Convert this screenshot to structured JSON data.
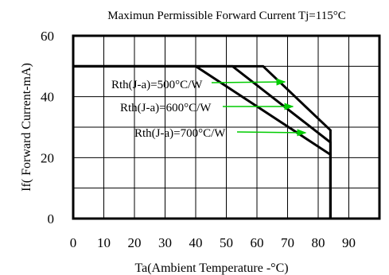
{
  "chart_data": {
    "type": "line",
    "title": "Maximun Permissible Forward Current Tj=115°C",
    "xlabel": "Ta(Ambient Temperature -°C)",
    "ylabel": "If( Forward Current-mA)",
    "xlim": [
      0,
      100
    ],
    "ylim": [
      0,
      60
    ],
    "x_ticks": [
      "0",
      "10",
      "20",
      "30",
      "40",
      "50",
      "60",
      "70",
      "80",
      "90"
    ],
    "y_ticks": [
      "0",
      "20",
      "40",
      "60"
    ],
    "grid": true,
    "arrow_color": "#00cc00",
    "series": [
      {
        "name": "Rth(J-a)=500°C/W",
        "x": [
          0,
          62,
          84,
          84
        ],
        "y": [
          50,
          50,
          29,
          0
        ]
      },
      {
        "name": "Rth(J-a)=600°C/W",
        "x": [
          0,
          52,
          84,
          84
        ],
        "y": [
          50,
          50,
          25,
          0
        ]
      },
      {
        "name": "Rth(J-a)=700°C/W",
        "x": [
          0,
          40,
          84,
          84
        ],
        "y": [
          50,
          50,
          21,
          0
        ]
      }
    ]
  }
}
